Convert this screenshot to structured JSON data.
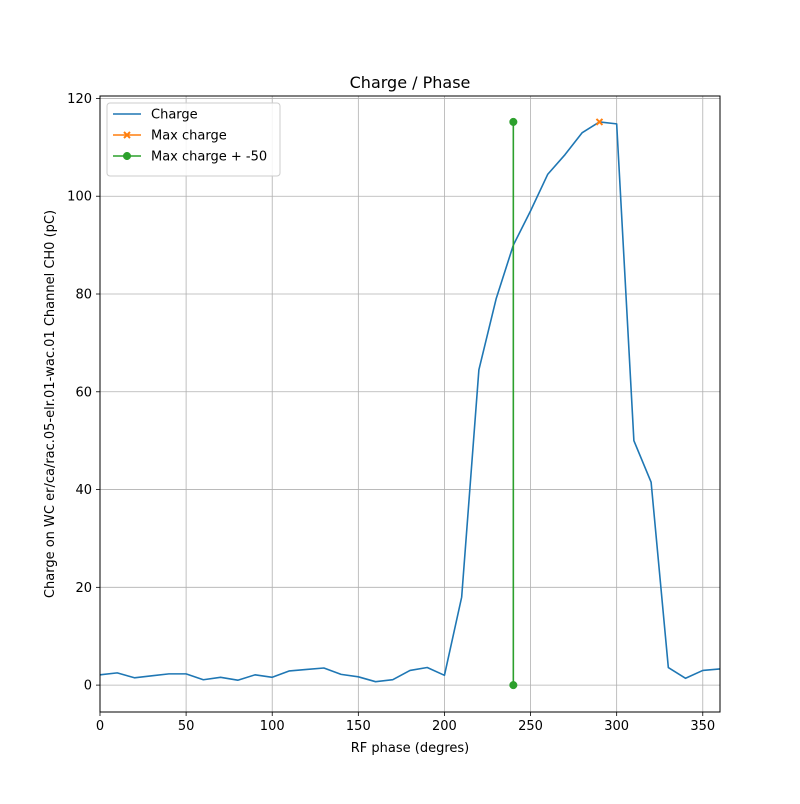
{
  "chart_data": {
    "type": "line",
    "title": "Charge / Phase",
    "xlabel": "RF phase (degres)",
    "ylabel": "Charge on WC er/ca/rac.05-elr.01-wac.01 Channel CH0 (pC)",
    "xlim": [
      0,
      360
    ],
    "ylim": [
      -5.5,
      120.5
    ],
    "xticks": [
      0,
      50,
      100,
      150,
      200,
      250,
      300,
      350
    ],
    "yticks": [
      0,
      20,
      40,
      60,
      80,
      100,
      120
    ],
    "grid": true,
    "legend_position": "top-left",
    "series": [
      {
        "name": "Charge",
        "color": "#1f77b4",
        "marker": "none",
        "x": [
          0,
          10,
          20,
          30,
          40,
          50,
          60,
          70,
          80,
          90,
          100,
          110,
          120,
          130,
          140,
          150,
          160,
          170,
          180,
          190,
          200,
          210,
          220,
          230,
          240,
          250,
          260,
          270,
          280,
          290,
          300,
          310,
          320,
          330,
          340,
          350,
          360
        ],
        "y": [
          2.1,
          2.5,
          1.5,
          1.9,
          2.3,
          2.3,
          1.1,
          1.6,
          1.0,
          2.1,
          1.6,
          2.9,
          3.2,
          3.5,
          2.2,
          1.7,
          0.7,
          1.1,
          3.0,
          3.6,
          2.0,
          18.0,
          64.5,
          79.0,
          90.0,
          97.0,
          104.5,
          108.5,
          113.0,
          115.2,
          114.8,
          50.0,
          41.5,
          3.6,
          1.4,
          3.0,
          3.3
        ]
      },
      {
        "name": "Max charge",
        "color": "#ff7f0e",
        "marker": "x",
        "x": [
          290
        ],
        "y": [
          115.2
        ]
      },
      {
        "name": "Max charge + -50",
        "color": "#2ca02c",
        "marker": "o",
        "x": [
          240,
          240
        ],
        "y": [
          0,
          115.2
        ]
      }
    ]
  }
}
